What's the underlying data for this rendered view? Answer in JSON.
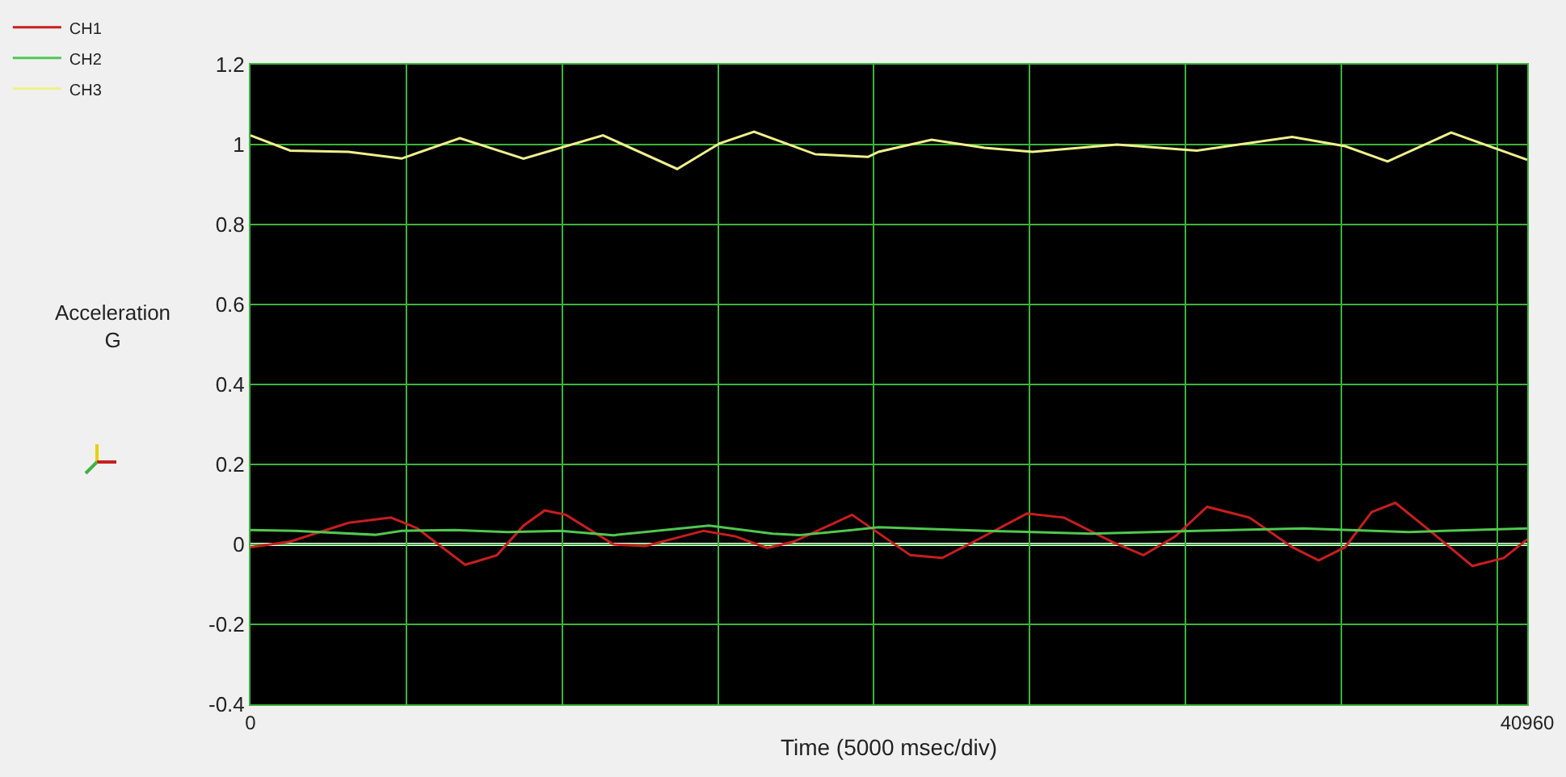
{
  "chart_data": {
    "type": "line",
    "xlabel": "Time (5000 msec/div)",
    "ylabel": "Acceleration\nG",
    "xlim": [
      0,
      40960
    ],
    "xticks": [
      0,
      {
        "value": 5000,
        "label": null
      },
      {
        "value": 10000,
        "label": null
      },
      {
        "value": 15000,
        "label": null
      },
      {
        "value": 20000,
        "label": null
      },
      {
        "value": 25000,
        "label": null
      },
      {
        "value": 30000,
        "label": null
      },
      {
        "value": 35000,
        "label": null
      },
      {
        "value": 40000,
        "label": null
      },
      40960
    ],
    "ylim": [
      -0.4,
      1.2
    ],
    "yticks": [
      -0.4,
      -0.2,
      0,
      0.2,
      0.4,
      0.6,
      0.8,
      1,
      1.2
    ],
    "grid": true,
    "legend": "top left",
    "marker": "none",
    "line_style": "solid",
    "ref_lines": [
      {
        "axis": "y",
        "value": 0,
        "color": "#ffffff"
      }
    ],
    "series": [
      {
        "name": "CH1",
        "color": "#c81e1e",
        "x": [
          0,
          1275,
          3148,
          4507,
          5357,
          6888,
          7908,
          8760,
          9440,
          10120,
          11650,
          12670,
          14540,
          15560,
          16580,
          17430,
          19300,
          21170,
          22190,
          23210,
          24910,
          26100,
          27630,
          28650,
          29670,
          30690,
          32050,
          33420,
          34270,
          35120,
          35970,
          36730,
          37840,
          39200,
          40210,
          40960
        ],
        "values": [
          -0.007,
          0.007,
          0.054,
          0.067,
          0.04,
          -0.051,
          -0.027,
          0.047,
          0.085,
          0.074,
          0,
          -0.004,
          0.034,
          0.02,
          -0.009,
          0.007,
          0.074,
          -0.027,
          -0.034,
          0.007,
          0.077,
          0.067,
          0.007,
          -0.027,
          0.02,
          0.094,
          0.067,
          -0.007,
          -0.04,
          -0.007,
          0.081,
          0.104,
          0.034,
          -0.054,
          -0.034,
          0.013
        ]
      },
      {
        "name": "CH2",
        "color": "#50c850",
        "x": [
          0,
          1450,
          4000,
          4850,
          6550,
          8250,
          9950,
          11650,
          14710,
          16750,
          17600,
          19300,
          20150,
          23550,
          26950,
          30360,
          33760,
          37160,
          40960
        ],
        "values": [
          0.036,
          0.034,
          0.024,
          0.034,
          0.036,
          0.031,
          0.034,
          0.023,
          0.047,
          0.027,
          0.023,
          0.036,
          0.043,
          0.034,
          0.027,
          0.034,
          0.04,
          0.031,
          0.04
        ]
      },
      {
        "name": "CH3",
        "color": "#f0f08c",
        "x": [
          0,
          1275,
          3148,
          4847,
          6718,
          8760,
          11310,
          13690,
          15050,
          16155,
          18110,
          19810,
          20150,
          21850,
          23550,
          25090,
          27800,
          30360,
          33420,
          35120,
          36480,
          38520,
          40960
        ],
        "values": [
          1.023,
          0.985,
          0.982,
          0.965,
          1.016,
          0.965,
          1.023,
          0.939,
          1.003,
          1.032,
          0.976,
          0.969,
          0.982,
          1.012,
          0.992,
          0.982,
          1,
          0.985,
          1.019,
          0.996,
          0.958,
          1.03,
          0.962
        ]
      }
    ]
  }
}
